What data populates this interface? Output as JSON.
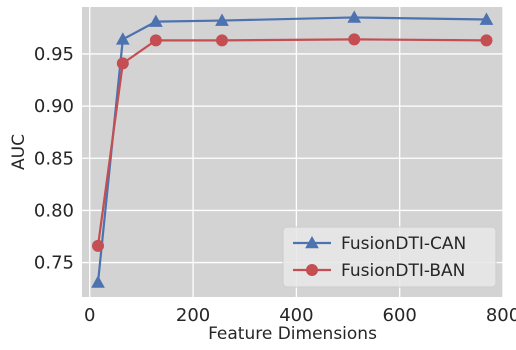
{
  "chart_data": {
    "type": "line",
    "title": "",
    "xlabel": "Feature Dimensions",
    "ylabel": "AUC",
    "xlim": [
      -15,
      800
    ],
    "ylim": [
      0.717,
      0.995
    ],
    "xticks": [
      0,
      200,
      400,
      600,
      800
    ],
    "yticks": [
      0.75,
      0.8,
      0.85,
      0.9,
      0.95
    ],
    "xtick_labels": [
      "0",
      "200",
      "400",
      "600",
      "800"
    ],
    "ytick_labels": [
      "0.75",
      "0.80",
      "0.85",
      "0.90",
      "0.95"
    ],
    "grid": true,
    "background": "#d3d3d3",
    "legend_position": "lower-right",
    "series": [
      {
        "name": "FusionDTI-CAN",
        "color": "#4c72b0",
        "marker": "triangle",
        "x": [
          16,
          64,
          128,
          256,
          512,
          768
        ],
        "y": [
          0.731,
          0.964,
          0.981,
          0.982,
          0.985,
          0.983
        ]
      },
      {
        "name": "FusionDTI-BAN",
        "color": "#c44e52",
        "marker": "circle",
        "x": [
          16,
          64,
          128,
          256,
          512,
          768
        ],
        "y": [
          0.766,
          0.941,
          0.963,
          0.963,
          0.964,
          0.963
        ]
      }
    ]
  }
}
